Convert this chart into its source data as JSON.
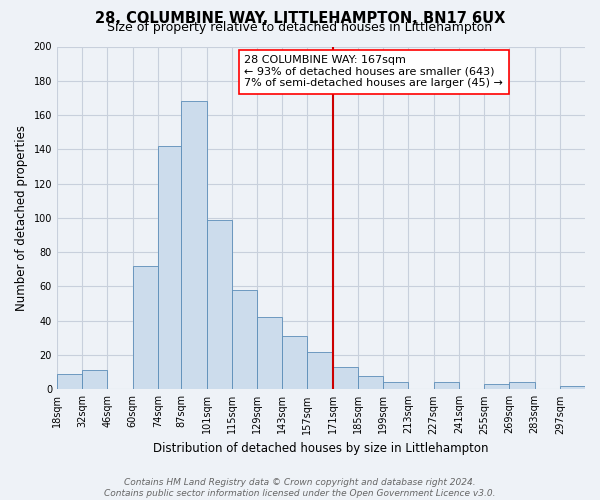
{
  "title": "28, COLUMBINE WAY, LITTLEHAMPTON, BN17 6UX",
  "subtitle": "Size of property relative to detached houses in Littlehampton",
  "xlabel": "Distribution of detached houses by size in Littlehampton",
  "ylabel": "Number of detached properties",
  "footer_line1": "Contains HM Land Registry data © Crown copyright and database right 2024.",
  "footer_line2": "Contains public sector information licensed under the Open Government Licence v3.0.",
  "bin_labels": [
    "18sqm",
    "32sqm",
    "46sqm",
    "60sqm",
    "74sqm",
    "87sqm",
    "101sqm",
    "115sqm",
    "129sqm",
    "143sqm",
    "157sqm",
    "171sqm",
    "185sqm",
    "199sqm",
    "213sqm",
    "227sqm",
    "241sqm",
    "255sqm",
    "269sqm",
    "283sqm",
    "297sqm"
  ],
  "bin_edges": [
    18,
    32,
    46,
    60,
    74,
    87,
    101,
    115,
    129,
    143,
    157,
    171,
    185,
    199,
    213,
    227,
    241,
    255,
    269,
    283,
    297,
    311
  ],
  "bar_heights": [
    9,
    11,
    0,
    72,
    142,
    168,
    99,
    58,
    42,
    31,
    22,
    13,
    8,
    4,
    0,
    4,
    0,
    3,
    4,
    0,
    2
  ],
  "bar_color": "#ccdcec",
  "bar_edge_color": "#5b8db8",
  "vline_x": 171,
  "vline_color": "#cc0000",
  "ylim": [
    0,
    200
  ],
  "yticks": [
    0,
    20,
    40,
    60,
    80,
    100,
    120,
    140,
    160,
    180,
    200
  ],
  "annotation_title": "28 COLUMBINE WAY: 167sqm",
  "annotation_line1": "← 93% of detached houses are smaller (643)",
  "annotation_line2": "7% of semi-detached houses are larger (45) →",
  "background_color": "#eef2f7",
  "grid_color": "#c8d0dc",
  "title_fontsize": 10.5,
  "subtitle_fontsize": 9,
  "axis_label_fontsize": 8.5,
  "tick_fontsize": 7,
  "annotation_fontsize": 8,
  "footer_fontsize": 6.5
}
